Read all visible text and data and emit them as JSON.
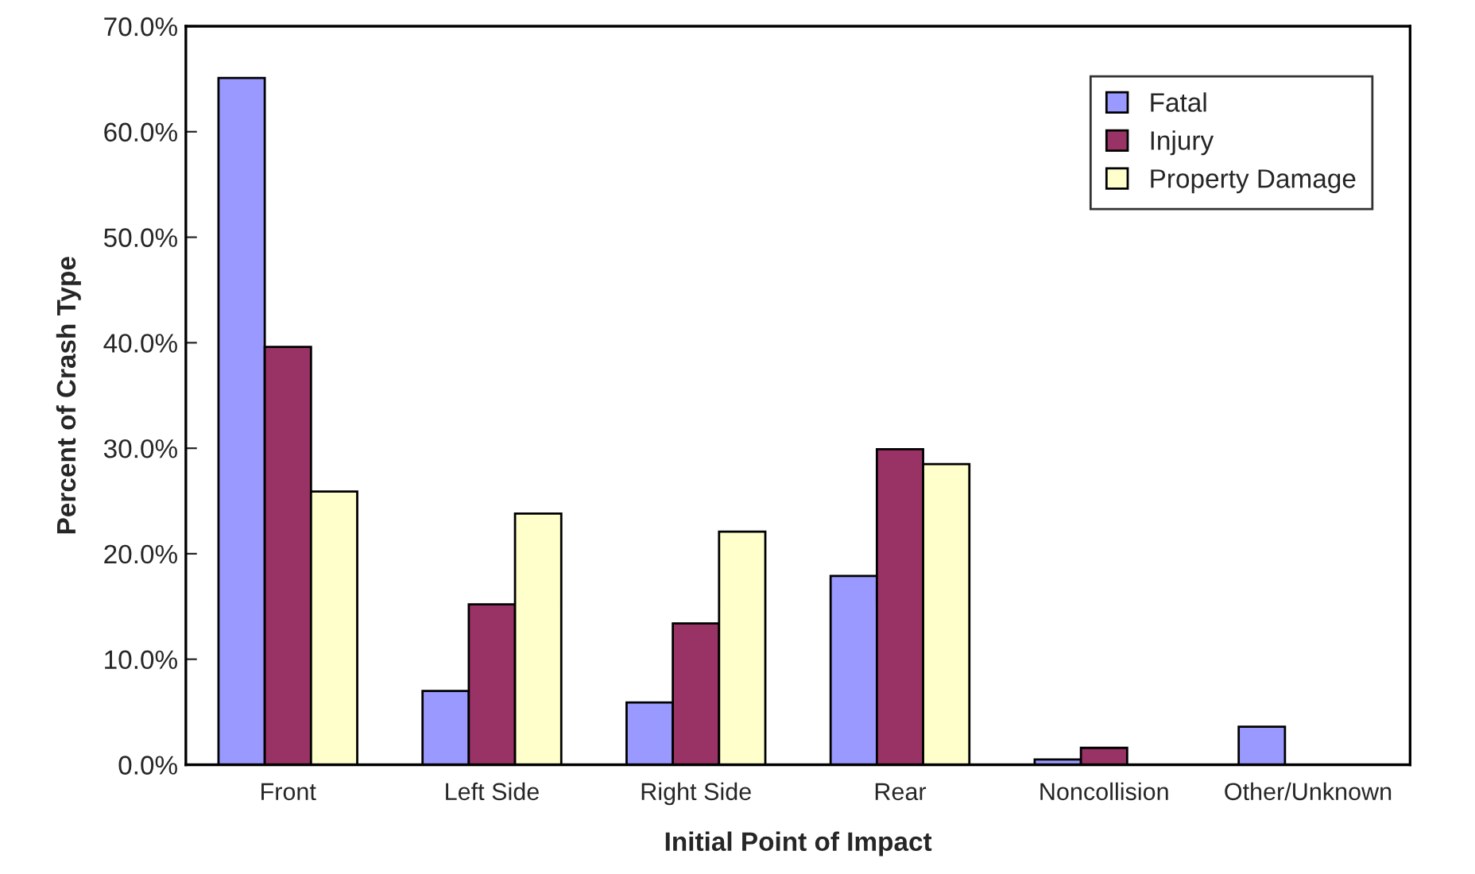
{
  "chart_data": {
    "type": "bar",
    "xlabel": "Initial Point of Impact",
    "ylabel": "Percent of Crash Type",
    "categories": [
      "Front",
      "Left Side",
      "Right Side",
      "Rear",
      "Noncollision",
      "Other/Unknown"
    ],
    "series": [
      {
        "name": "Fatal",
        "color": "#9999ff",
        "values": [
          65.1,
          7.0,
          5.9,
          17.9,
          0.5,
          3.6
        ]
      },
      {
        "name": "Injury",
        "color": "#993366",
        "values": [
          39.6,
          15.2,
          13.4,
          29.9,
          1.6,
          null
        ]
      },
      {
        "name": "Property Damage",
        "color": "#ffffcc",
        "values": [
          25.9,
          23.8,
          22.1,
          28.5,
          null,
          null
        ]
      }
    ],
    "ylim": [
      0,
      70
    ],
    "yticks": [
      {
        "value": 0,
        "label": "0.0%"
      },
      {
        "value": 10,
        "label": "10.0%"
      },
      {
        "value": 20,
        "label": "20.0%"
      },
      {
        "value": 30,
        "label": "30.0%"
      },
      {
        "value": 40,
        "label": "40.0%"
      },
      {
        "value": 50,
        "label": "50.0%"
      },
      {
        "value": 60,
        "label": "60.0%"
      },
      {
        "value": 70,
        "label": "70.0%"
      }
    ],
    "grid": false,
    "legend": "top right"
  }
}
